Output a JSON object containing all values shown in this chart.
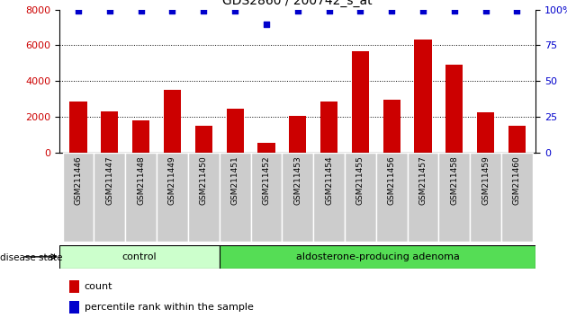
{
  "title": "GDS2860 / 200742_s_at",
  "samples": [
    "GSM211446",
    "GSM211447",
    "GSM211448",
    "GSM211449",
    "GSM211450",
    "GSM211451",
    "GSM211452",
    "GSM211453",
    "GSM211454",
    "GSM211455",
    "GSM211456",
    "GSM211457",
    "GSM211458",
    "GSM211459",
    "GSM211460"
  ],
  "counts": [
    2850,
    2300,
    1800,
    3500,
    1500,
    2450,
    550,
    2050,
    2850,
    5650,
    2950,
    6300,
    4900,
    2250,
    1500
  ],
  "percentiles": [
    99,
    99,
    99,
    99,
    99,
    99,
    90,
    99,
    99,
    99,
    99,
    99,
    99,
    99,
    99
  ],
  "ylim_left": [
    0,
    8000
  ],
  "ylim_right": [
    0,
    100
  ],
  "yticks_left": [
    0,
    2000,
    4000,
    6000,
    8000
  ],
  "yticks_right": [
    0,
    25,
    50,
    75,
    100
  ],
  "bar_color": "#cc0000",
  "dot_color": "#0000cc",
  "grid_color": "#000000",
  "control_samples": 5,
  "adenoma_samples": 10,
  "control_label": "control",
  "adenoma_label": "aldosterone-producing adenoma",
  "disease_state_label": "disease state",
  "legend_count_label": "count",
  "legend_percentile_label": "percentile rank within the sample",
  "control_color": "#ccffcc",
  "adenoma_color": "#55dd55",
  "bg_color": "#ffffff",
  "title_fontsize": 10,
  "bar_fontsize": 7,
  "axis_fontsize": 8,
  "xtick_bg_color": "#cccccc",
  "xtick_sep_color": "#ffffff"
}
